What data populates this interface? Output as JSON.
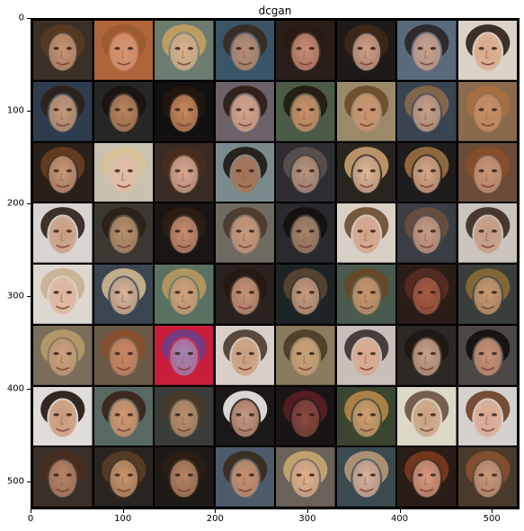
{
  "title": "dcgan",
  "grid": {
    "rows": 8,
    "cols": 8,
    "gutter": "black"
  },
  "x_ticks": [
    "0",
    "100",
    "200",
    "300",
    "400",
    "500"
  ],
  "y_ticks": [
    "0",
    "100",
    "200",
    "300",
    "400",
    "500"
  ],
  "tick_values": {
    "x": [
      0,
      100,
      200,
      300,
      400,
      500
    ],
    "y": [
      0,
      100,
      200,
      300,
      400,
      500
    ],
    "range": [
      0,
      530
    ]
  },
  "tiles": [
    {
      "bg": "#3b3026",
      "skin": "#c79577",
      "hair": "#5a3a22"
    },
    {
      "bg": "#b0643a",
      "skin": "#d79575",
      "hair": "#9a5a30"
    },
    {
      "bg": "#6c7c70",
      "skin": "#d8b08c",
      "hair": "#c7a060"
    },
    {
      "bg": "#3a5468",
      "skin": "#b78e72",
      "hair": "#3a2a1e"
    },
    {
      "bg": "#2a1e1a",
      "skin": "#c98c74",
      "hair": "#2a1a14"
    },
    {
      "bg": "#1e1a18",
      "skin": "#d0a28a",
      "hair": "#3e2818"
    },
    {
      "bg": "#5a6a7c",
      "skin": "#c8a08c",
      "hair": "#2a2422"
    },
    {
      "bg": "#dbd4c6",
      "skin": "#d8a88c",
      "hair": "#2a1e18"
    },
    {
      "bg": "#2e3c4e",
      "skin": "#c69a7a",
      "hair": "#2c2018"
    },
    {
      "bg": "#262624",
      "skin": "#b8845e",
      "hair": "#1c1410"
    },
    {
      "bg": "#121010",
      "skin": "#c8885e",
      "hair": "#221610"
    },
    {
      "bg": "#6a6268",
      "skin": "#d4a48a",
      "hair": "#2c1c14"
    },
    {
      "bg": "#4c5a48",
      "skin": "#c89068",
      "hair": "#22180e"
    },
    {
      "bg": "#9a8a6a",
      "skin": "#c89470",
      "hair": "#6a4a2a"
    },
    {
      "bg": "#3a4450",
      "skin": "#c8a088",
      "hair": "#8a6a4a"
    },
    {
      "bg": "#8a6a4c",
      "skin": "#c88e66",
      "hair": "#aa7040"
    },
    {
      "bg": "#2a201a",
      "skin": "#c8987a",
      "hair": "#6a3e20"
    },
    {
      "bg": "#c8c0b0",
      "skin": "#e0bca2",
      "hair": "#d8c090"
    },
    {
      "bg": "#3a2c24",
      "skin": "#d8a890",
      "hair": "#4a2e1c"
    },
    {
      "bg": "#7a8a8c",
      "skin": "#a87454",
      "hair": "#1e1612"
    },
    {
      "bg": "#2e2e32",
      "skin": "#b89680",
      "hair": "#5a5250"
    },
    {
      "bg": "#2a241e",
      "skin": "#e0b898",
      "hair": "#c8a070"
    },
    {
      "bg": "#1e1c1c",
      "skin": "#d8a888",
      "hair": "#9a7040"
    },
    {
      "bg": "#6a4c38",
      "skin": "#c89678",
      "hair": "#8a4e28"
    },
    {
      "bg": "#d8d4d0",
      "skin": "#c89c80",
      "hair": "#2a2018"
    },
    {
      "bg": "#3a3830",
      "skin": "#b8906e",
      "hair": "#2a2016"
    },
    {
      "bg": "#1a1614",
      "skin": "#c88e72",
      "hair": "#2e1e14"
    },
    {
      "bg": "#6e6a62",
      "skin": "#c8987a",
      "hair": "#4a3a2a"
    },
    {
      "bg": "#2a2a2e",
      "skin": "#a8846a",
      "hair": "#141010"
    },
    {
      "bg": "#d8d0c4",
      "skin": "#d0a28a",
      "hair": "#6a4a30"
    },
    {
      "bg": "#3a3e44",
      "skin": "#c89c84",
      "hair": "#6a5040"
    },
    {
      "bg": "#cac4bc",
      "skin": "#c49a80",
      "hair": "#3a2a20"
    },
    {
      "bg": "#dcd8d0",
      "skin": "#dcb49c",
      "hair": "#c8b090"
    },
    {
      "bg": "#3c4650",
      "skin": "#d8b498",
      "hair": "#d0b890"
    },
    {
      "bg": "#5a7060",
      "skin": "#d0a27a",
      "hair": "#b8985e"
    },
    {
      "bg": "#2a221e",
      "skin": "#c8967a",
      "hair": "#241812"
    },
    {
      "bg": "#1e2426",
      "skin": "#c89e80",
      "hair": "#5a4632"
    },
    {
      "bg": "#4a5a4c",
      "skin": "#c8966c",
      "hair": "#6a4624"
    },
    {
      "bg": "#2a1c18",
      "skin": "#a85c44",
      "hair": "#5a2e22"
    },
    {
      "bg": "#3a3e3a",
      "skin": "#c89a70",
      "hair": "#8a6a38"
    },
    {
      "bg": "#7a6e5a",
      "skin": "#c8a07c",
      "hair": "#b89c6a"
    },
    {
      "bg": "#6c5a48",
      "skin": "#c88864",
      "hair": "#8a4e2a"
    },
    {
      "bg": "#c81e3c",
      "skin": "#a084b0",
      "hair": "#6a3e8a"
    },
    {
      "bg": "#d8d0c8",
      "skin": "#c89c7c",
      "hair": "#4a3a2c"
    },
    {
      "bg": "#8a7a5e",
      "skin": "#c8a078",
      "hair": "#4a3a26"
    },
    {
      "bg": "#c8c0b8",
      "skin": "#d8a88e",
      "hair": "#3a3030"
    },
    {
      "bg": "#2c2824",
      "skin": "#c8a088",
      "hair": "#1e1612"
    },
    {
      "bg": "#4c4846",
      "skin": "#c89278",
      "hair": "#140e0c"
    },
    {
      "bg": "#e0dcd8",
      "skin": "#c89878",
      "hair": "#1e1410"
    },
    {
      "bg": "#5a6864",
      "skin": "#d09670",
      "hair": "#3a2418"
    },
    {
      "bg": "#3a3c38",
      "skin": "#b8906e",
      "hair": "#4a3a28"
    },
    {
      "bg": "#1a1818",
      "skin": "#c89a82",
      "hair": "#f0ece8"
    },
    {
      "bg": "#1a1416",
      "skin": "#8a4a40",
      "hair": "#5a1e22"
    },
    {
      "bg": "#3a4630",
      "skin": "#d0a070",
      "hair": "#b8864a"
    },
    {
      "bg": "#dcd8c8",
      "skin": "#c8a080",
      "hair": "#6a5240"
    },
    {
      "bg": "#d4d0cc",
      "skin": "#d8a890",
      "hair": "#6a3e26"
    },
    {
      "bg": "#3a302a",
      "skin": "#b88468",
      "hair": "#4a2e1e"
    },
    {
      "bg": "#2a2420",
      "skin": "#c8966e",
      "hair": "#5a3e24"
    },
    {
      "bg": "#1e1a16",
      "skin": "#b88466",
      "hair": "#2a1e14"
    },
    {
      "bg": "#4c5a6a",
      "skin": "#c8906c",
      "hair": "#3a2a1c"
    },
    {
      "bg": "#6a6258",
      "skin": "#dcb08c",
      "hair": "#c8a870"
    },
    {
      "bg": "#3a4a4e",
      "skin": "#d8b09a",
      "hair": "#b89878"
    },
    {
      "bg": "#2a1c16",
      "skin": "#d89a80",
      "hair": "#7a3a1e"
    },
    {
      "bg": "#4a3a2c",
      "skin": "#c8987c",
      "hair": "#8a5030"
    }
  ]
}
